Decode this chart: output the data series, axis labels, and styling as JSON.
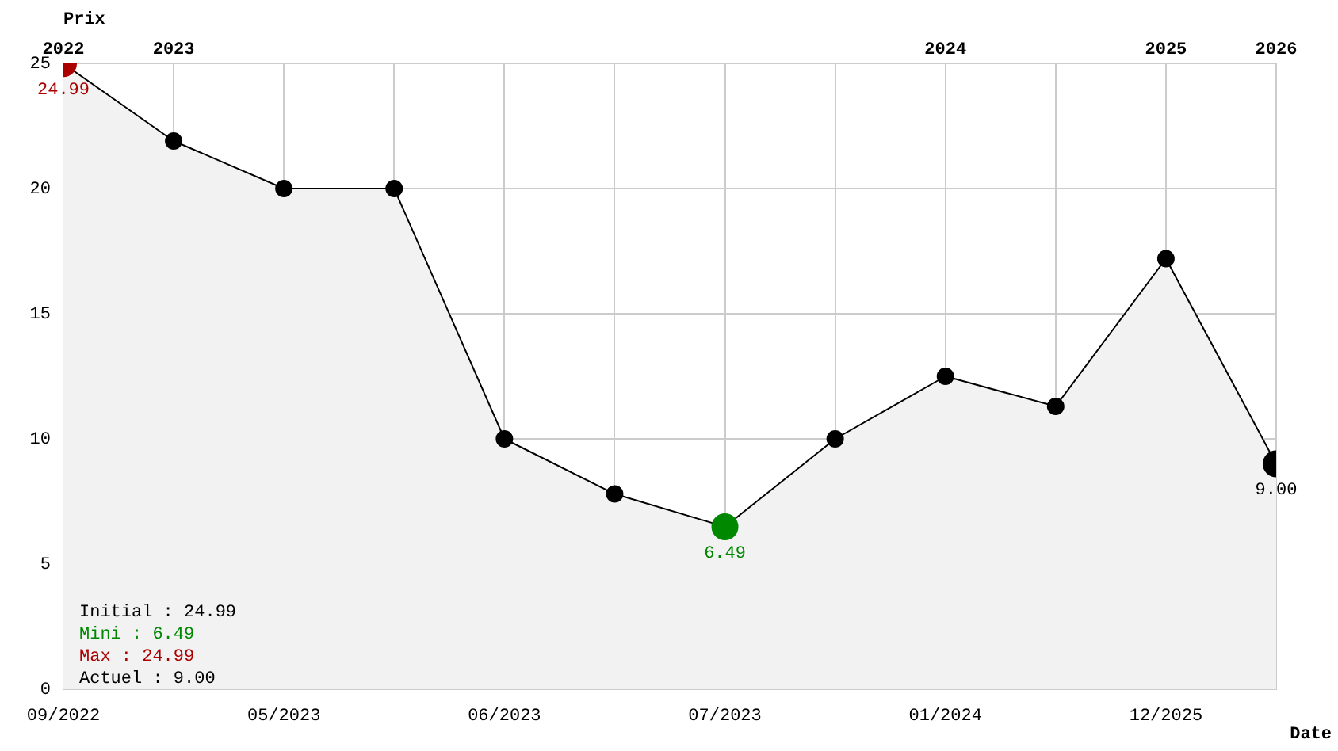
{
  "chart_data": {
    "type": "area",
    "xlabel": "Date",
    "ylabel": "Prix",
    "categories": [
      "09/2022",
      null,
      "05/2023",
      null,
      "06/2023",
      null,
      "07/2023",
      null,
      "01/2024",
      null,
      "12/2025",
      null
    ],
    "ylim": [
      0,
      25
    ],
    "yticks": [
      0,
      5,
      10,
      15,
      20,
      25
    ],
    "series": [
      {
        "color": "#000000",
        "colors": [
          "#aa0000",
          "#000000",
          "#000000",
          "#000000",
          "#000000",
          "#000000",
          "#008800",
          "#000000",
          "#000000",
          "#000000",
          "#000000",
          "#000000"
        ],
        "values": [
          24.99,
          21.9,
          20,
          20,
          10,
          7.8,
          6.49,
          10,
          12.5,
          11.3,
          17.2,
          9.0
        ],
        "value_labels": [
          "24.99",
          null,
          null,
          null,
          null,
          null,
          "6.49",
          null,
          null,
          null,
          null,
          "9.00"
        ]
      }
    ],
    "annotations": [
      "2022",
      "2023",
      "2024",
      "2025",
      "2026",
      "Initial : 24.99",
      "Mini : 6.49",
      "Max : 24.99",
      "Actuel : 9.00"
    ],
    "grid": true,
    "marker": "circle"
  }
}
